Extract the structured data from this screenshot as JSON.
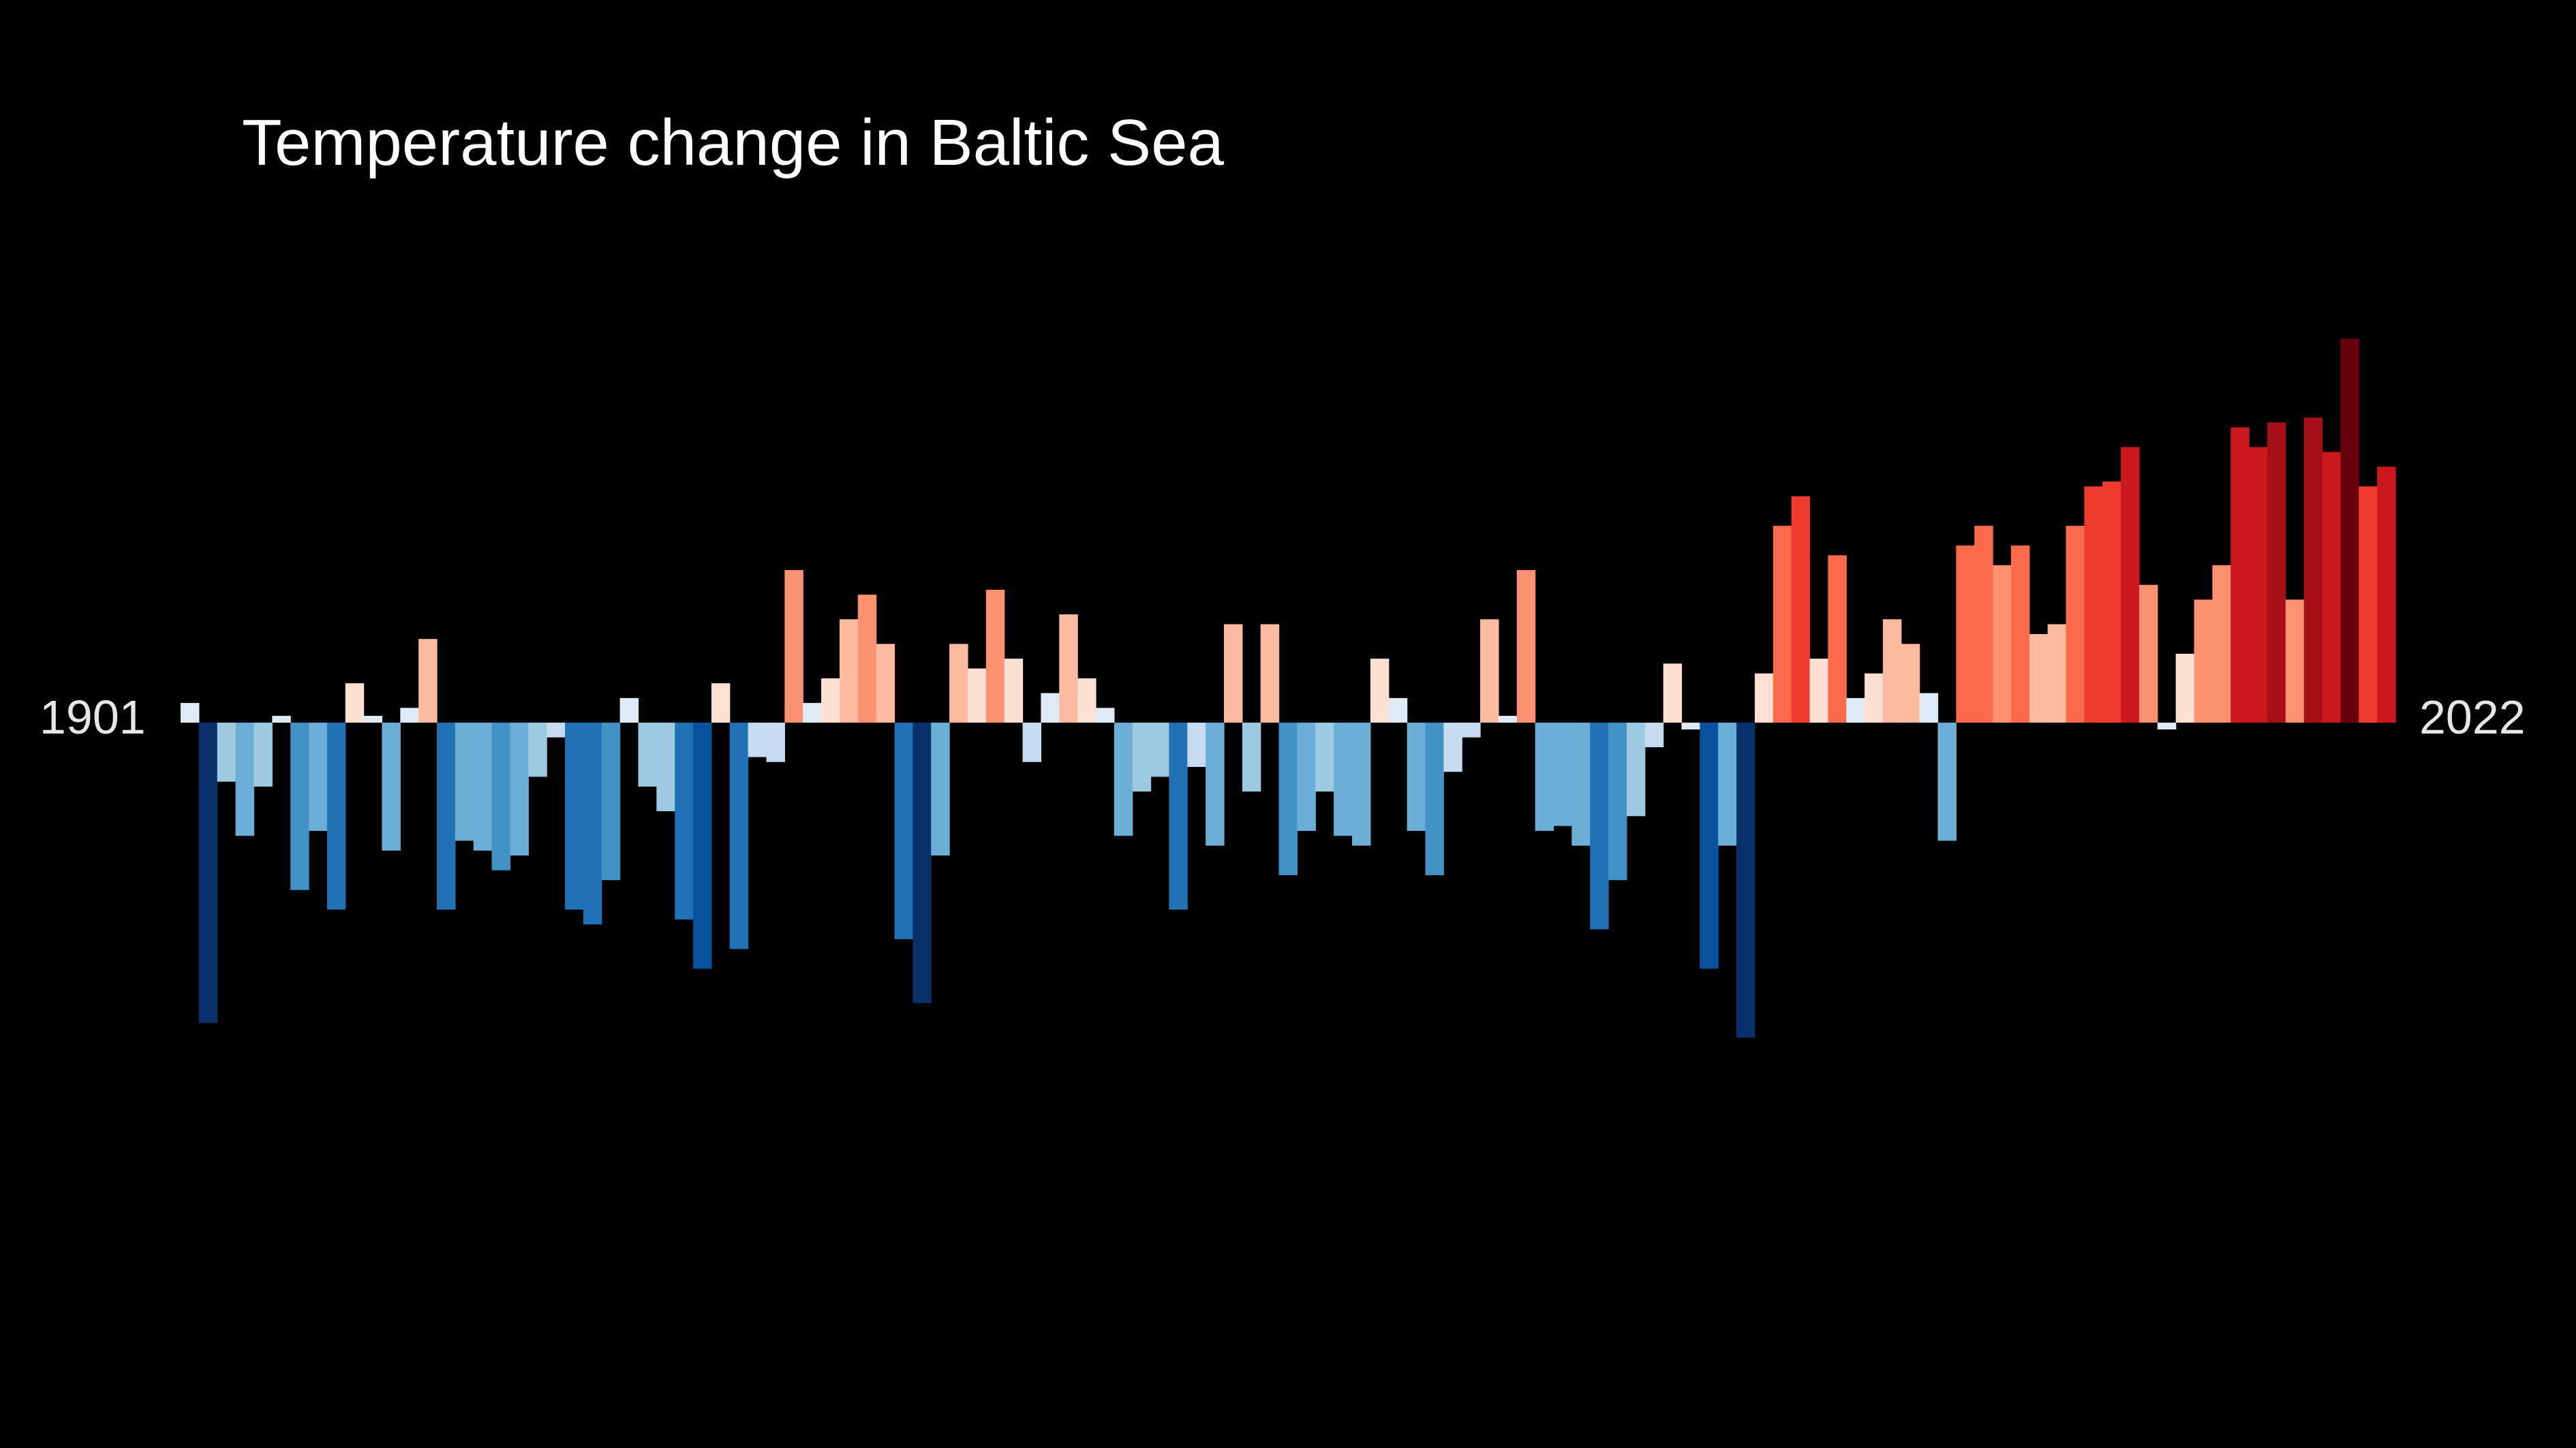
{
  "chart_data": {
    "type": "bar",
    "title": "Temperature change in Baltic Sea",
    "start_label": "1901",
    "end_label": "2022",
    "x_start": 1901,
    "x_end": 2022,
    "ylim": [
      -0.63,
      0.83
    ],
    "grid": false,
    "legend": "none",
    "colors": [
      "#08306b",
      "#08519c",
      "#2171b5",
      "#4292c6",
      "#6baed6",
      "#9ecae1",
      "#c6dbef",
      "#deebf7",
      "#fee0d2",
      "#fcbba1",
      "#fc9272",
      "#fb6a4a",
      "#ef3b2c",
      "#cb181d",
      "#a50f15",
      "#67000d"
    ],
    "values": [
      0.04,
      -0.61,
      -0.12,
      -0.23,
      -0.13,
      0.0,
      -0.34,
      -0.22,
      -0.38,
      0.08,
      0.01,
      -0.26,
      0.03,
      0.17,
      -0.38,
      -0.24,
      -0.26,
      -0.3,
      -0.27,
      -0.11,
      -0.03,
      -0.38,
      -0.41,
      -0.32,
      0.05,
      -0.13,
      -0.18,
      -0.4,
      -0.5,
      0.08,
      -0.46,
      -0.07,
      -0.08,
      0.31,
      0.04,
      0.09,
      0.21,
      0.26,
      0.16,
      -0.44,
      -0.57,
      -0.27,
      0.16,
      0.11,
      0.27,
      0.13,
      -0.08,
      0.06,
      0.22,
      0.09,
      0.03,
      -0.23,
      -0.14,
      -0.11,
      -0.38,
      -0.09,
      -0.25,
      0.2,
      -0.14,
      0.2,
      -0.31,
      -0.22,
      -0.14,
      -0.23,
      -0.25,
      0.13,
      0.05,
      -0.22,
      -0.31,
      -0.1,
      -0.03,
      0.21,
      0.01,
      0.31,
      -0.22,
      -0.21,
      -0.25,
      -0.42,
      -0.32,
      -0.19,
      -0.05,
      0.12,
      -0.01,
      -0.5,
      -0.25,
      -0.64,
      0.1,
      0.4,
      0.46,
      0.13,
      0.34,
      0.05,
      0.1,
      0.21,
      0.16,
      0.06,
      -0.24,
      0.36,
      0.4,
      0.32,
      0.36,
      0.18,
      0.2,
      0.4,
      0.48,
      0.49,
      0.56,
      0.28,
      -0.01,
      0.14,
      0.25,
      0.32,
      0.6,
      0.56,
      0.61,
      0.25,
      0.62,
      0.55,
      0.78,
      0.48,
      0.52
    ]
  }
}
